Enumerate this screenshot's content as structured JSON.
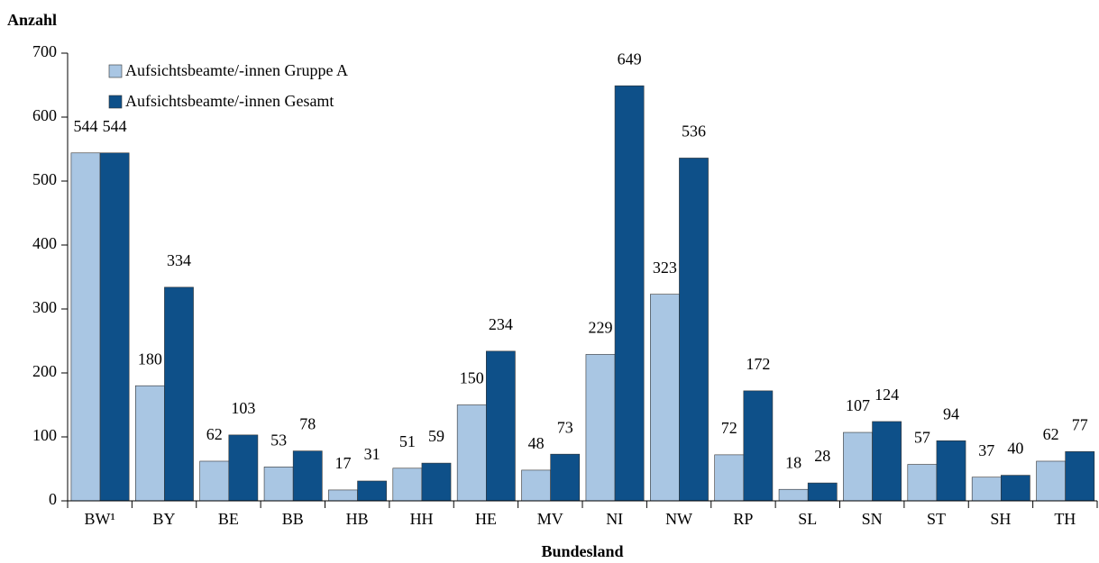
{
  "chart_data": {
    "type": "bar",
    "y_label": "Anzahl",
    "x_label": "Bundesland",
    "categories": [
      "BW¹",
      "BY",
      "BE",
      "BB",
      "HB",
      "HH",
      "HE",
      "MV",
      "NI",
      "NW",
      "RP",
      "SL",
      "SN",
      "ST",
      "SH",
      "TH"
    ],
    "series": [
      {
        "name": "Aufsichtsbeamte/-innen Gruppe A",
        "color": "#a9c6e3",
        "values": [
          544,
          180,
          62,
          53,
          17,
          51,
          150,
          48,
          229,
          323,
          72,
          18,
          107,
          57,
          37,
          62
        ]
      },
      {
        "name": "Aufsichtsbeamte/-innen Gesamt",
        "color": "#0e5089",
        "values": [
          544,
          334,
          103,
          78,
          31,
          59,
          234,
          73,
          649,
          536,
          172,
          28,
          124,
          94,
          40,
          77
        ]
      }
    ],
    "ylim": [
      0,
      700
    ],
    "yticks": [
      0,
      100,
      200,
      300,
      400,
      500,
      600,
      700
    ],
    "legend": "upper left"
  }
}
